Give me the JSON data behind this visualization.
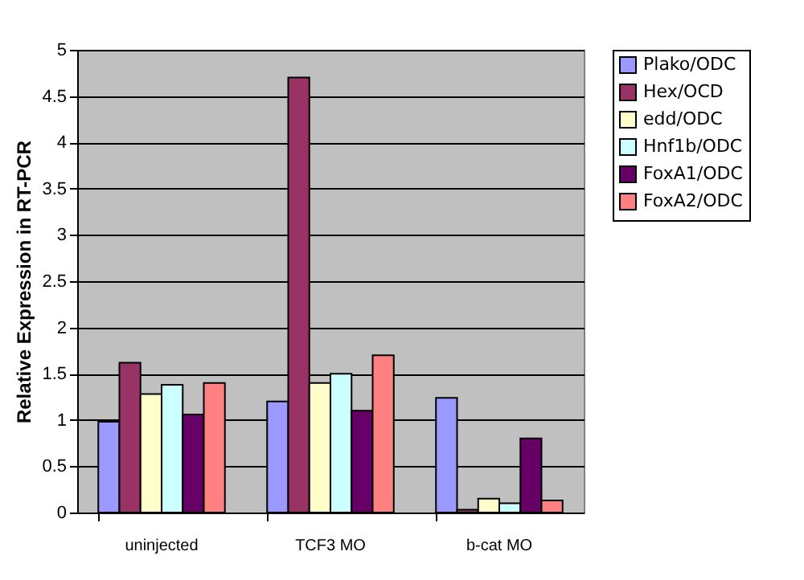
{
  "chart_data": {
    "type": "bar",
    "ylabel": "Relative Expression in RT-PCR",
    "categories": [
      "uninjected",
      "TCF3 MO",
      "b-cat MO"
    ],
    "series": [
      {
        "name": "Plako/ODC",
        "color": "#9999ff",
        "values": [
          0.98,
          1.2,
          1.24
        ]
      },
      {
        "name": "Hex/OCD",
        "color": "#993366",
        "values": [
          1.62,
          4.7,
          0.03
        ]
      },
      {
        "name": "edd/ODC",
        "color": "#ffffcc",
        "values": [
          1.28,
          1.4,
          0.15
        ]
      },
      {
        "name": "Hnf1b/ODC",
        "color": "#ccffff",
        "values": [
          1.38,
          1.5,
          0.1
        ]
      },
      {
        "name": "FoxA1/ODC",
        "color": "#660066",
        "values": [
          1.06,
          1.1,
          0.8
        ]
      },
      {
        "name": "FoxA2/ODC",
        "color": "#ff8080",
        "values": [
          1.4,
          1.7,
          0.13
        ]
      }
    ],
    "ylim": [
      0,
      5
    ],
    "yticks": [
      0,
      0.5,
      1,
      1.5,
      2,
      2.5,
      3,
      3.5,
      4,
      4.5,
      5
    ],
    "grid": "y",
    "legend": "right"
  }
}
